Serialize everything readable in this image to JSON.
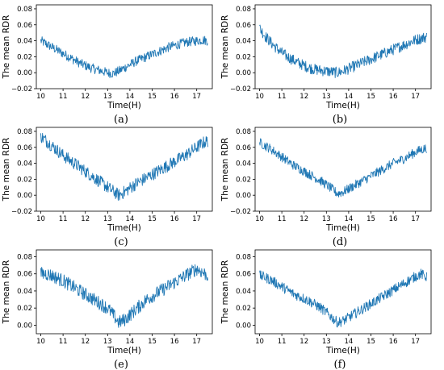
{
  "chart_data": [
    {
      "type": "line",
      "panel_label": "(a)",
      "xlabel": "Time(H)",
      "ylabel": "The mean RDR",
      "xlim": [
        9.8,
        17.7
      ],
      "ylim": [
        -0.02,
        0.085
      ],
      "xticks": [
        "10",
        "11",
        "12",
        "13",
        "14",
        "15",
        "16",
        "17"
      ],
      "yticks": [
        "−0.02",
        "0.00",
        "0.02",
        "0.04",
        "0.06",
        "0.08"
      ],
      "grid": false,
      "series": [
        {
          "color": "#1f77b4",
          "x": [
            10.0,
            10.25,
            10.5,
            10.75,
            11.0,
            11.25,
            11.5,
            11.75,
            12.0,
            12.25,
            12.5,
            12.75,
            13.0,
            13.25,
            13.5,
            13.75,
            14.0,
            14.25,
            14.5,
            14.75,
            15.0,
            15.25,
            15.5,
            15.75,
            16.0,
            16.25,
            16.5,
            16.75,
            17.0,
            17.25,
            17.5
          ],
          "y": [
            0.04,
            0.036,
            0.032,
            0.028,
            0.024,
            0.02,
            0.016,
            0.012,
            0.009,
            0.006,
            0.004,
            0.002,
            0.0,
            -0.001,
            0.002,
            0.006,
            0.01,
            0.014,
            0.017,
            0.02,
            0.023,
            0.026,
            0.029,
            0.032,
            0.034,
            0.036,
            0.038,
            0.039,
            0.04,
            0.041,
            0.04
          ],
          "noise": 0.006
        }
      ]
    },
    {
      "type": "line",
      "panel_label": "(b)",
      "xlabel": "Time(H)",
      "ylabel": "The mean RDR",
      "xlim": [
        9.8,
        17.7
      ],
      "ylim": [
        -0.02,
        0.085
      ],
      "xticks": [
        "10",
        "11",
        "12",
        "13",
        "14",
        "15",
        "16",
        "17"
      ],
      "yticks": [
        "−0.02",
        "0.00",
        "0.02",
        "0.04",
        "0.06",
        "0.08"
      ],
      "grid": false,
      "series": [
        {
          "color": "#1f77b4",
          "x": [
            10.0,
            10.25,
            10.5,
            10.75,
            11.0,
            11.25,
            11.5,
            11.75,
            12.0,
            12.25,
            12.5,
            12.75,
            13.0,
            13.25,
            13.5,
            13.75,
            14.0,
            14.25,
            14.5,
            14.75,
            15.0,
            15.25,
            15.5,
            15.75,
            16.0,
            16.25,
            16.5,
            16.75,
            17.0,
            17.25,
            17.5
          ],
          "y": [
            0.056,
            0.046,
            0.038,
            0.031,
            0.025,
            0.02,
            0.016,
            0.012,
            0.009,
            0.006,
            0.004,
            0.003,
            0.002,
            0.001,
            0.0,
            0.002,
            0.005,
            0.008,
            0.011,
            0.014,
            0.017,
            0.02,
            0.023,
            0.026,
            0.029,
            0.032,
            0.035,
            0.038,
            0.041,
            0.043,
            0.045
          ],
          "noise": 0.007
        }
      ]
    },
    {
      "type": "line",
      "panel_label": "(c)",
      "xlabel": "Time(H)",
      "ylabel": "The mean RDR",
      "xlim": [
        9.8,
        17.7
      ],
      "ylim": [
        -0.02,
        0.085
      ],
      "xticks": [
        "10",
        "11",
        "12",
        "13",
        "14",
        "15",
        "16",
        "17"
      ],
      "yticks": [
        "−0.02",
        "0.00",
        "0.02",
        "0.04",
        "0.06",
        "0.08"
      ],
      "grid": false,
      "series": [
        {
          "color": "#1f77b4",
          "x": [
            10.0,
            10.25,
            10.5,
            10.75,
            11.0,
            11.25,
            11.5,
            11.75,
            12.0,
            12.25,
            12.5,
            12.75,
            13.0,
            13.25,
            13.5,
            13.75,
            14.0,
            14.25,
            14.5,
            14.75,
            15.0,
            15.25,
            15.5,
            15.75,
            16.0,
            16.25,
            16.5,
            16.75,
            17.0,
            17.25,
            17.5
          ],
          "y": [
            0.074,
            0.068,
            0.062,
            0.056,
            0.05,
            0.045,
            0.04,
            0.035,
            0.03,
            0.025,
            0.02,
            0.015,
            0.01,
            0.005,
            0.0,
            0.004,
            0.009,
            0.014,
            0.018,
            0.022,
            0.026,
            0.03,
            0.034,
            0.038,
            0.042,
            0.046,
            0.05,
            0.055,
            0.06,
            0.065,
            0.068
          ],
          "noise": 0.008
        }
      ]
    },
    {
      "type": "line",
      "panel_label": "(d)",
      "xlabel": "Time(H)",
      "ylabel": "The mean RDR",
      "xlim": [
        9.8,
        17.7
      ],
      "ylim": [
        -0.02,
        0.085
      ],
      "xticks": [
        "10",
        "11",
        "12",
        "13",
        "14",
        "15",
        "16",
        "17"
      ],
      "yticks": [
        "−0.02",
        "0.00",
        "0.02",
        "0.04",
        "0.06",
        "0.08"
      ],
      "grid": false,
      "series": [
        {
          "color": "#1f77b4",
          "x": [
            10.0,
            10.25,
            10.5,
            10.75,
            11.0,
            11.25,
            11.5,
            11.75,
            12.0,
            12.25,
            12.5,
            12.75,
            13.0,
            13.25,
            13.5,
            13.75,
            14.0,
            14.25,
            14.5,
            14.75,
            15.0,
            15.25,
            15.5,
            15.75,
            16.0,
            16.25,
            16.5,
            16.75,
            17.0,
            17.25,
            17.5
          ],
          "y": [
            0.066,
            0.062,
            0.058,
            0.053,
            0.048,
            0.043,
            0.038,
            0.034,
            0.03,
            0.026,
            0.022,
            0.018,
            0.013,
            0.008,
            0.002,
            0.004,
            0.008,
            0.012,
            0.016,
            0.02,
            0.024,
            0.028,
            0.032,
            0.036,
            0.04,
            0.043,
            0.046,
            0.05,
            0.054,
            0.057,
            0.059
          ],
          "noise": 0.006
        }
      ]
    },
    {
      "type": "line",
      "panel_label": "(e)",
      "xlabel": "Time(H)",
      "ylabel": "The mean RDR",
      "xlim": [
        9.8,
        17.7
      ],
      "ylim": [
        -0.01,
        0.088
      ],
      "xticks": [
        "10",
        "11",
        "12",
        "13",
        "14",
        "15",
        "16",
        "17"
      ],
      "yticks": [
        "0.00",
        "0.02",
        "0.04",
        "0.06",
        "0.08"
      ],
      "grid": false,
      "series": [
        {
          "color": "#1f77b4",
          "x": [
            10.0,
            10.25,
            10.5,
            10.75,
            11.0,
            11.25,
            11.5,
            11.75,
            12.0,
            12.25,
            12.5,
            12.75,
            13.0,
            13.25,
            13.5,
            13.75,
            14.0,
            14.25,
            14.5,
            14.75,
            15.0,
            15.25,
            15.5,
            15.75,
            16.0,
            16.25,
            16.5,
            16.75,
            17.0,
            17.25,
            17.5
          ],
          "y": [
            0.06,
            0.06,
            0.058,
            0.055,
            0.052,
            0.048,
            0.044,
            0.04,
            0.036,
            0.032,
            0.028,
            0.024,
            0.02,
            0.012,
            0.003,
            0.006,
            0.012,
            0.018,
            0.024,
            0.03,
            0.034,
            0.038,
            0.042,
            0.046,
            0.05,
            0.054,
            0.058,
            0.062,
            0.066,
            0.062,
            0.058
          ],
          "noise": 0.008
        }
      ]
    },
    {
      "type": "line",
      "panel_label": "(f)",
      "xlabel": "Time(H)",
      "ylabel": "The mean RDR",
      "xlim": [
        9.8,
        17.7
      ],
      "ylim": [
        -0.01,
        0.088
      ],
      "xticks": [
        "10",
        "11",
        "12",
        "13",
        "14",
        "15",
        "16",
        "17"
      ],
      "yticks": [
        "0.00",
        "0.02",
        "0.04",
        "0.06",
        "0.08"
      ],
      "grid": false,
      "series": [
        {
          "color": "#1f77b4",
          "x": [
            10.0,
            10.25,
            10.5,
            10.75,
            11.0,
            11.25,
            11.5,
            11.75,
            12.0,
            12.25,
            12.5,
            12.75,
            13.0,
            13.25,
            13.5,
            13.75,
            14.0,
            14.25,
            14.5,
            14.75,
            15.0,
            15.25,
            15.5,
            15.75,
            16.0,
            16.25,
            16.5,
            16.75,
            17.0,
            17.25,
            17.5
          ],
          "y": [
            0.058,
            0.056,
            0.053,
            0.049,
            0.045,
            0.041,
            0.037,
            0.034,
            0.031,
            0.028,
            0.024,
            0.02,
            0.015,
            0.009,
            0.003,
            0.005,
            0.009,
            0.013,
            0.017,
            0.021,
            0.025,
            0.029,
            0.033,
            0.037,
            0.041,
            0.045,
            0.049,
            0.053,
            0.057,
            0.06,
            0.056
          ],
          "noise": 0.006
        }
      ]
    }
  ]
}
